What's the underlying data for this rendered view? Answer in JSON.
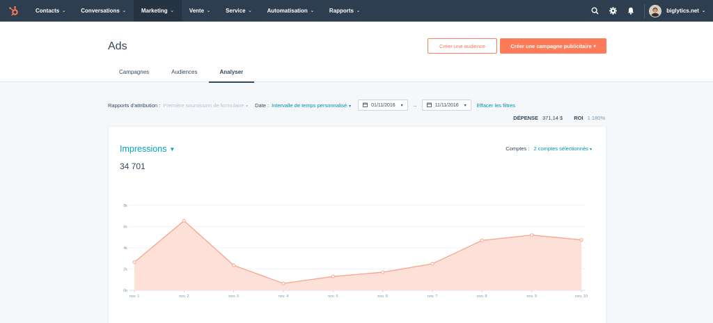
{
  "nav": {
    "items": [
      {
        "label": "Contacts",
        "active": false
      },
      {
        "label": "Conversations",
        "active": false
      },
      {
        "label": "Marketing",
        "active": true
      },
      {
        "label": "Vente",
        "active": false
      },
      {
        "label": "Service",
        "active": false
      },
      {
        "label": "Automatisation",
        "active": false
      },
      {
        "label": "Rapports",
        "active": false
      }
    ],
    "account_name": "biglytics.net",
    "icons": [
      "search-icon",
      "gear-icon",
      "bell-icon"
    ],
    "bg_color": "#2d3e50"
  },
  "header": {
    "title": "Ads",
    "create_audience_label": "Créer une audience",
    "create_campaign_label": "Créer une campagne publicitaire",
    "accent_color": "#ff7a59",
    "tabs": [
      {
        "label": "Campagnes",
        "active": false
      },
      {
        "label": "Audiences",
        "active": false
      },
      {
        "label": "Analyser",
        "active": true
      }
    ]
  },
  "filters": {
    "attribution_label": "Rapports d'attribution :",
    "attribution_value": "Première soumission de formulaire",
    "date_label": "Date :",
    "date_value": "Intervalle de temps personnalisé",
    "start_date": "01/11/2016",
    "end_date": "11/11/2016",
    "clear_label": "Effacer les filtres"
  },
  "summary": {
    "spend_label": "DÉPENSE",
    "spend_value": "371,14 $",
    "roi_label": "ROI",
    "roi_value": "1 180%"
  },
  "card": {
    "metric_label": "Impressions",
    "total_value": "34 701",
    "accounts_label": "Comptes :",
    "accounts_value": "2 comptes sélectionnés"
  },
  "chart_data": {
    "type": "area",
    "title": "",
    "xlabel": "",
    "ylabel": "",
    "categories": [
      "nov. 1",
      "nov. 2",
      "nov. 3",
      "nov. 4",
      "nov. 5",
      "nov. 6",
      "nov. 7",
      "nov. 8",
      "nov. 9",
      "nov. 10"
    ],
    "values": [
      2650,
      6550,
      2350,
      650,
      1300,
      1700,
      2500,
      4700,
      5200,
      4750
    ],
    "ylim": [
      0,
      8000
    ],
    "yticks": [
      "0k",
      "2k",
      "4k",
      "6k",
      "8k"
    ],
    "ytick_values": [
      0,
      2000,
      4000,
      6000,
      8000
    ],
    "grid": true,
    "line_color": "#f8a58c",
    "fill_color": "#fde0d8"
  }
}
